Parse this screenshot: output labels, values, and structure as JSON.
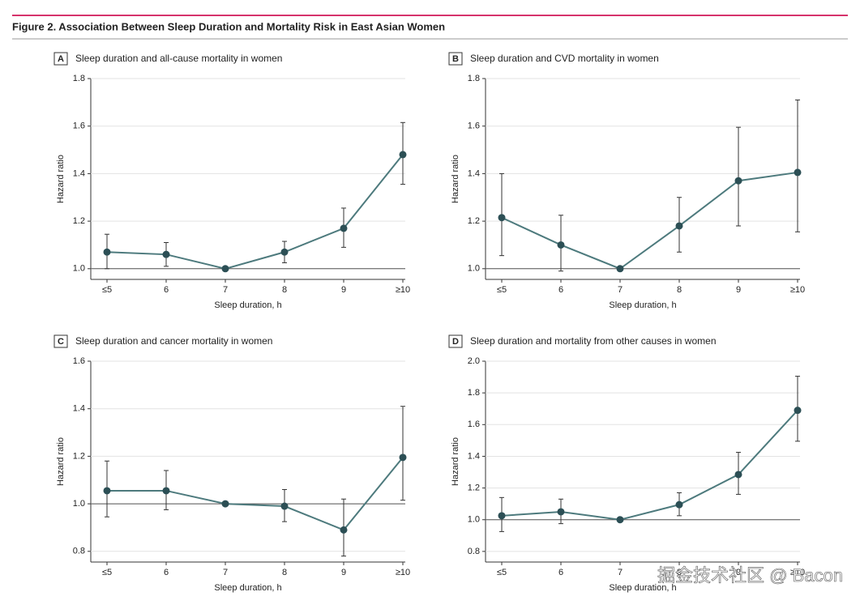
{
  "figure_title": "Figure 2. Association Between Sleep Duration and Mortality Risk in East Asian Women",
  "watermark": "掘金技术社区 @ Bacon",
  "chart_data": [
    {
      "type": "line",
      "panel": "A",
      "title": "Sleep duration and all-cause mortality in women",
      "x_label": "Sleep duration, h",
      "y_label": "Hazard ratio",
      "categories": [
        "≤5",
        "6",
        "7",
        "8",
        "9",
        "≥10"
      ],
      "series": [
        {
          "color": "#4d7a7d",
          "marker_color": "#2c4f55",
          "values": [
            1.07,
            1.06,
            1.0,
            1.07,
            1.17,
            1.48
          ],
          "ci_lower": [
            1.0,
            1.01,
            null,
            1.025,
            1.09,
            1.355
          ],
          "ci_upper": [
            1.145,
            1.11,
            null,
            1.115,
            1.255,
            1.615
          ]
        }
      ],
      "reference_line": 1.0,
      "ylim": [
        0.955,
        1.8
      ],
      "yticks": [
        {
          "value": 1.0,
          "label": "1.0"
        },
        {
          "value": 1.2,
          "label": "1.2"
        },
        {
          "value": 1.4,
          "label": "1.4"
        },
        {
          "value": 1.6,
          "label": "1.6"
        },
        {
          "value": 1.8,
          "label": "1.8"
        }
      ]
    },
    {
      "type": "line",
      "panel": "B",
      "title": "Sleep duration and CVD mortality in women",
      "x_label": "Sleep duration, h",
      "y_label": "Hazard ratio",
      "categories": [
        "≤5",
        "6",
        "7",
        "8",
        "9",
        "≥10"
      ],
      "series": [
        {
          "color": "#4d7a7d",
          "marker_color": "#2c4f55",
          "values": [
            1.215,
            1.1,
            1.0,
            1.18,
            1.37,
            1.405
          ],
          "ci_lower": [
            1.055,
            0.99,
            null,
            1.07,
            1.18,
            1.155
          ],
          "ci_upper": [
            1.4,
            1.225,
            null,
            1.3,
            1.595,
            1.71
          ]
        }
      ],
      "reference_line": 1.0,
      "ylim": [
        0.955,
        1.8
      ],
      "yticks": [
        {
          "value": 1.0,
          "label": "1.0"
        },
        {
          "value": 1.2,
          "label": "1.2"
        },
        {
          "value": 1.4,
          "label": "1.4"
        },
        {
          "value": 1.6,
          "label": "1.6"
        },
        {
          "value": 1.8,
          "label": "1.8"
        }
      ]
    },
    {
      "type": "line",
      "panel": "C",
      "title": "Sleep duration and cancer mortality in women",
      "x_label": "Sleep duration, h",
      "y_label": "Hazard ratio",
      "categories": [
        "≤5",
        "6",
        "7",
        "8",
        "9",
        "≥10"
      ],
      "series": [
        {
          "color": "#4d7a7d",
          "marker_color": "#2c4f55",
          "values": [
            1.055,
            1.055,
            1.0,
            0.99,
            0.89,
            1.195
          ],
          "ci_lower": [
            0.945,
            0.975,
            null,
            0.925,
            0.78,
            1.015
          ],
          "ci_upper": [
            1.18,
            1.14,
            null,
            1.06,
            1.02,
            1.41
          ]
        }
      ],
      "reference_line": 1.0,
      "ylim": [
        0.755,
        1.6
      ],
      "yticks": [
        {
          "value": 0.8,
          "label": "0.8"
        },
        {
          "value": 1.0,
          "label": "1.0"
        },
        {
          "value": 1.2,
          "label": "1.2"
        },
        {
          "value": 1.4,
          "label": "1.4"
        },
        {
          "value": 1.6,
          "label": "1.6"
        }
      ]
    },
    {
      "type": "line",
      "panel": "D",
      "title": "Sleep duration and mortality from other causes in women",
      "x_label": "Sleep duration, h",
      "y_label": "Hazard ratio",
      "categories": [
        "≤5",
        "6",
        "7",
        "8",
        "9",
        "≥10"
      ],
      "series": [
        {
          "color": "#4d7a7d",
          "marker_color": "#2c4f55",
          "values": [
            1.025,
            1.05,
            1.0,
            1.095,
            1.285,
            1.69
          ],
          "ci_lower": [
            0.925,
            0.975,
            null,
            1.025,
            1.16,
            1.495
          ],
          "ci_upper": [
            1.14,
            1.13,
            null,
            1.17,
            1.425,
            1.905
          ]
        }
      ],
      "reference_line": 1.0,
      "ylim": [
        0.733,
        2.0
      ],
      "yticks": [
        {
          "value": 0.8,
          "label": "0.8"
        },
        {
          "value": 1.0,
          "label": "1.0"
        },
        {
          "value": 1.2,
          "label": "1.2"
        },
        {
          "value": 1.4,
          "label": "1.4"
        },
        {
          "value": 1.6,
          "label": "1.6"
        },
        {
          "value": 1.8,
          "label": "1.8"
        },
        {
          "value": 2.0,
          "label": "2.0"
        }
      ]
    }
  ]
}
